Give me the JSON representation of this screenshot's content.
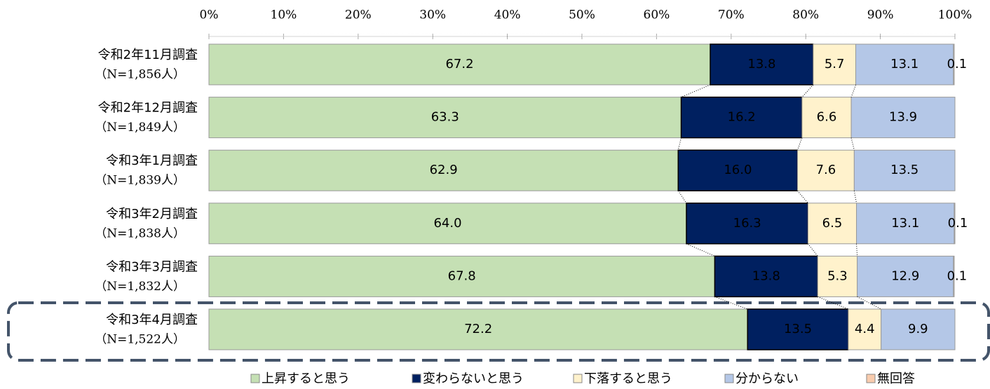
{
  "chart_data": {
    "type": "stacked-bar-100",
    "categories": [
      "令和2年11月調査",
      "令和2年12月調査",
      "令和3年1月調査",
      "令和3年2月調査",
      "令和3年3月調査",
      "令和3年4月調査"
    ],
    "sample_labels": [
      "（N=1,856人）",
      "（N=1,849人）",
      "（N=1,839人）",
      "（N=1,838人）",
      "（N=1,832人）",
      "（N=1,522人）"
    ],
    "series": [
      {
        "name": "上昇すると思う",
        "color": "#c5e0b4",
        "values": [
          67.2,
          63.3,
          62.9,
          64.0,
          67.8,
          72.2
        ],
        "value_labels": [
          "67.2",
          "63.3",
          "62.9",
          "64.0",
          "67.8",
          "72.2"
        ]
      },
      {
        "name": "変わらないと思う",
        "color": "#002060",
        "values": [
          13.8,
          16.2,
          16.0,
          16.3,
          13.8,
          13.5
        ],
        "value_labels": [
          "13.8",
          "16.2",
          "16.0",
          "16.3",
          "13.8",
          "13.5"
        ]
      },
      {
        "name": "下落すると思う",
        "color": "#fff2cc",
        "values": [
          5.7,
          6.6,
          7.6,
          6.5,
          5.3,
          4.4
        ],
        "value_labels": [
          "5.7",
          "6.6",
          "7.6",
          "6.5",
          "5.3",
          "4.4"
        ]
      },
      {
        "name": "分からない",
        "color": "#b4c7e7",
        "values": [
          13.1,
          13.9,
          13.5,
          13.1,
          12.9,
          9.9
        ],
        "value_labels": [
          "13.1",
          "13.9",
          "13.5",
          "13.1",
          "12.9",
          "9.9"
        ]
      },
      {
        "name": "無回答",
        "color": "#f8cbad",
        "values": [
          0.1,
          null,
          null,
          0.1,
          0.1,
          null
        ],
        "value_labels": [
          "0.1",
          null,
          null,
          "0.1",
          "0.1",
          null
        ]
      }
    ],
    "xlim": [
      0,
      100
    ],
    "xticks": [
      {
        "value": 0,
        "label": "0%"
      },
      {
        "value": 10,
        "label": "10%"
      },
      {
        "value": 20,
        "label": "20%"
      },
      {
        "value": 30,
        "label": "30%"
      },
      {
        "value": 40,
        "label": "40%"
      },
      {
        "value": 50,
        "label": "50%"
      },
      {
        "value": 60,
        "label": "60%"
      },
      {
        "value": 70,
        "label": "70%"
      },
      {
        "value": 80,
        "label": "80%"
      },
      {
        "value": 90,
        "label": "90%"
      },
      {
        "value": 100,
        "label": "100%"
      }
    ]
  }
}
